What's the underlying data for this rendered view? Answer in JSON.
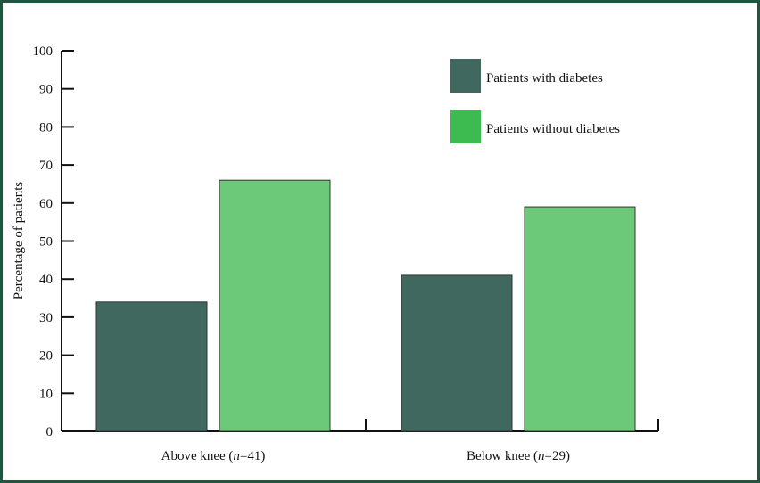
{
  "chart_data": {
    "type": "bar",
    "title": "",
    "xlabel": "",
    "ylabel": "Percentage of patients",
    "ylim": [
      0,
      100
    ],
    "yticks": [
      0,
      10,
      20,
      30,
      40,
      50,
      60,
      70,
      80,
      90,
      100
    ],
    "categories": [
      {
        "label": "Above knee (",
        "n_italic": "n",
        "rest": "=41)"
      },
      {
        "label": "Below knee (",
        "n_italic": "n",
        "rest": "=29)"
      }
    ],
    "series": [
      {
        "name": "Patients with diabetes",
        "color": "#41685f",
        "values": [
          34,
          41
        ]
      },
      {
        "name": "Patients without diabetes",
        "color": "#6cc97a",
        "values": [
          66,
          59
        ]
      }
    ],
    "legend_position": "top-right",
    "grid": false
  },
  "colors": {
    "frame_border": "#1e5640",
    "axis": "#111111",
    "legend_without_swatch": "#3dba50"
  }
}
